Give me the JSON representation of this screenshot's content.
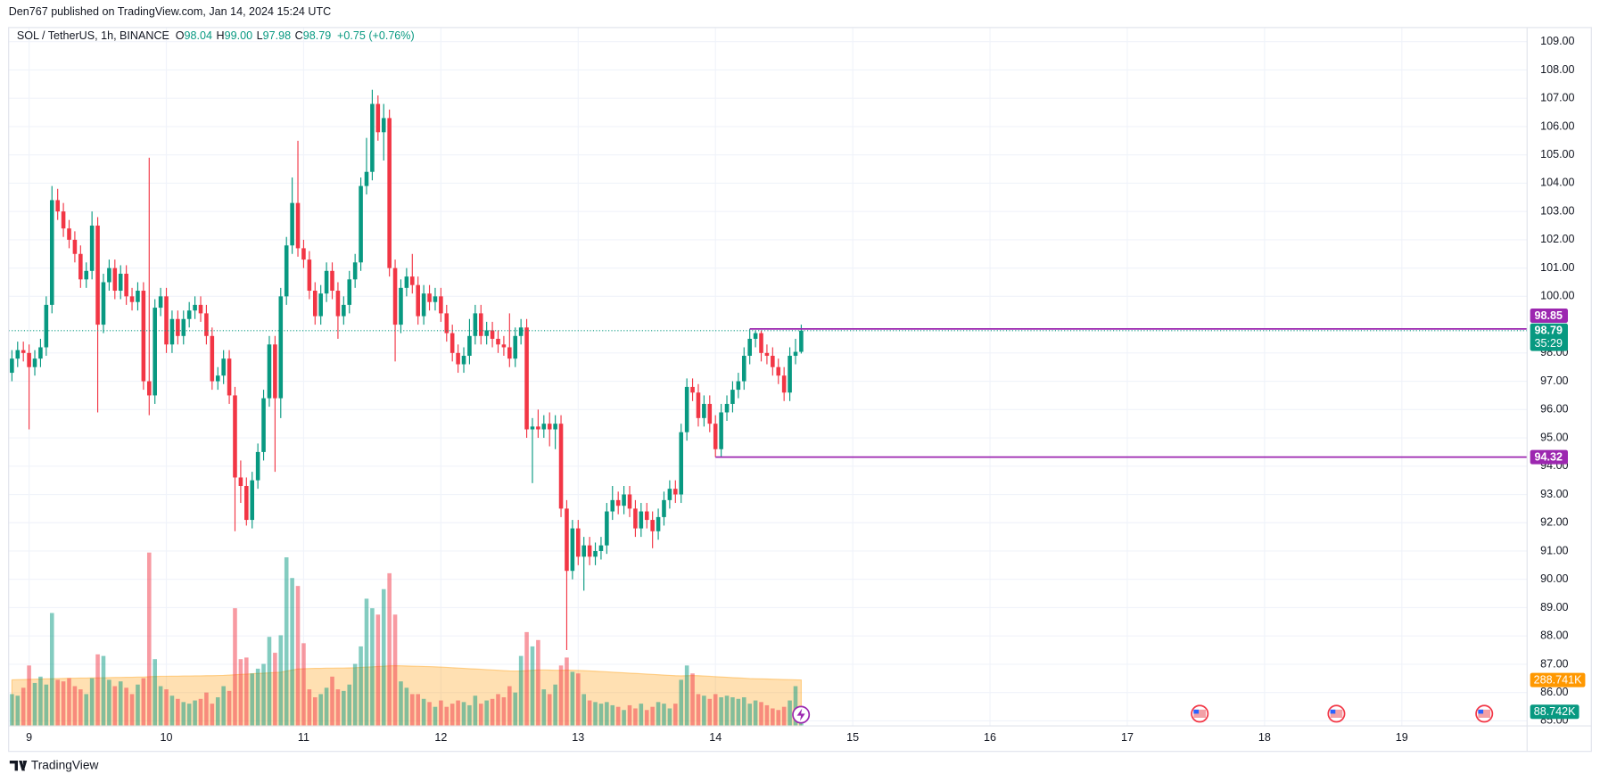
{
  "header": {
    "text": "Den767 published on TradingView.com, Jan 14, 2024 15:24 UTC"
  },
  "legend": {
    "symbol": "SOL / TetherUS, 1h, BINANCE",
    "o_label": "O",
    "open": "98.04",
    "h_label": "H",
    "high": "99.00",
    "l_label": "L",
    "low": "97.98",
    "c_label": "C",
    "close": "98.79",
    "change": "+0.75 (+0.76%)"
  },
  "footer": {
    "brand": "TradingView"
  },
  "chart_data": {
    "type": "candlestick",
    "x": [
      -3,
      -2,
      -1,
      0,
      1,
      2,
      3,
      4,
      5,
      6,
      7,
      8,
      9,
      10,
      11,
      12,
      13,
      14,
      15,
      16,
      17,
      18,
      19,
      20,
      21,
      22,
      23,
      24,
      25,
      26,
      27,
      28,
      29,
      30,
      31,
      32,
      33,
      34,
      35,
      36,
      37,
      38,
      39,
      40,
      41,
      42,
      43,
      44,
      45,
      46,
      47,
      48,
      49,
      50,
      51,
      52,
      53,
      54,
      55,
      56,
      57,
      58,
      59,
      60,
      61,
      62,
      63,
      64,
      65,
      66,
      67,
      68,
      69,
      70,
      71,
      72,
      73,
      74,
      75,
      76,
      77,
      78,
      79,
      80,
      81,
      82,
      83,
      84,
      85,
      86,
      87,
      88,
      89,
      90,
      91,
      92,
      93,
      94,
      95,
      96,
      97,
      98,
      99,
      100,
      101,
      102,
      103,
      104,
      105,
      106,
      107,
      108,
      109,
      110,
      111,
      112,
      113,
      114,
      115,
      116,
      117,
      118,
      119,
      120,
      121,
      122,
      123,
      124,
      125,
      126,
      127,
      128,
      129,
      130,
      131,
      132,
      133,
      134,
      135
    ],
    "open": [
      97.3,
      97.8,
      98.1,
      98.0,
      97.5,
      97.8,
      98.2,
      99.7,
      103.4,
      103.0,
      102.4,
      102.0,
      101.5,
      100.6,
      100.9,
      102.5,
      99.0,
      100.5,
      101.0,
      100.2,
      100.8,
      100.0,
      99.8,
      100.2,
      97.0,
      96.5,
      99.6,
      100.0,
      98.3,
      99.2,
      98.6,
      99.2,
      99.5,
      99.7,
      99.4,
      98.6,
      97.0,
      97.2,
      97.8,
      96.5,
      93.6,
      93.3,
      92.1,
      93.5,
      94.5,
      96.4,
      98.3,
      96.4,
      100.0,
      101.8,
      103.3,
      101.7,
      101.3,
      100.2,
      99.3,
      100.1,
      100.9,
      100.2,
      99.3,
      99.7,
      100.6,
      101.2,
      103.9,
      104.4,
      106.8,
      105.8,
      106.3,
      101.0,
      99.0,
      100.3,
      100.7,
      100.4,
      99.3,
      100.1,
      99.8,
      100.0,
      99.4,
      98.7,
      98.0,
      97.6,
      97.9,
      98.6,
      99.4,
      98.6,
      98.8,
      98.5,
      98.3,
      98.2,
      97.8,
      98.6,
      98.9,
      95.3,
      95.4,
      95.3,
      95.5,
      95.3,
      95.5,
      92.5,
      90.3,
      91.8,
      90.8,
      91.2,
      90.8,
      91.0,
      91.2,
      92.4,
      92.8,
      92.6,
      93.0,
      92.5,
      91.8,
      92.4,
      92.1,
      91.7,
      92.2,
      92.8,
      93.2,
      93.0,
      95.2,
      96.8,
      96.6,
      95.7,
      96.2,
      95.5,
      94.6,
      95.9,
      96.2,
      96.7,
      97.0,
      97.9,
      98.5,
      98.7,
      98.0,
      97.9,
      97.5,
      97.2,
      96.6,
      97.9,
      98.04
    ],
    "high": [
      98.1,
      98.4,
      98.4,
      98.3,
      98.1,
      98.5,
      100.0,
      103.9,
      103.8,
      103.3,
      102.7,
      102.3,
      101.8,
      101.2,
      103.0,
      102.8,
      100.8,
      101.3,
      101.3,
      101.1,
      101.1,
      100.3,
      100.5,
      100.5,
      104.9,
      99.9,
      100.3,
      100.3,
      99.5,
      99.5,
      99.5,
      99.8,
      100.0,
      100.0,
      99.7,
      98.9,
      97.5,
      98.1,
      98.1,
      96.8,
      94.2,
      93.6,
      93.8,
      94.8,
      96.7,
      98.6,
      98.6,
      100.3,
      102.1,
      104.2,
      105.5,
      102.0,
      101.6,
      100.5,
      100.4,
      101.2,
      101.2,
      100.5,
      100.0,
      100.9,
      101.5,
      104.2,
      105.6,
      107.3,
      107.1,
      106.8,
      106.6,
      101.3,
      100.6,
      101.0,
      101.5,
      100.7,
      100.4,
      100.4,
      100.3,
      100.3,
      99.7,
      99.0,
      98.3,
      98.2,
      99.2,
      99.7,
      99.7,
      99.1,
      99.1,
      98.8,
      98.6,
      99.4,
      98.9,
      99.2,
      99.2,
      95.7,
      96.0,
      95.8,
      95.9,
      95.8,
      95.8,
      92.8,
      92.1,
      92.1,
      91.5,
      91.5,
      91.3,
      91.5,
      92.7,
      93.3,
      93.1,
      93.3,
      93.3,
      92.8,
      92.7,
      92.7,
      92.4,
      92.5,
      93.1,
      93.5,
      93.5,
      95.5,
      97.1,
      97.1,
      96.9,
      96.5,
      96.5,
      95.8,
      96.2,
      96.5,
      97.0,
      97.3,
      98.2,
      98.85,
      98.8,
      98.8,
      98.3,
      98.2,
      97.8,
      97.5,
      98.2,
      98.5,
      99.0
    ],
    "low": [
      97.0,
      97.5,
      97.7,
      95.3,
      97.2,
      97.5,
      97.9,
      99.4,
      102.7,
      102.1,
      101.7,
      101.2,
      100.3,
      100.3,
      100.6,
      95.9,
      98.7,
      100.2,
      99.9,
      99.9,
      99.7,
      99.5,
      99.5,
      96.7,
      95.8,
      96.2,
      99.3,
      98.0,
      98.0,
      98.3,
      98.3,
      98.9,
      99.2,
      99.1,
      98.3,
      96.7,
      96.7,
      96.9,
      96.2,
      91.7,
      92.7,
      91.9,
      91.8,
      93.2,
      94.2,
      96.1,
      93.8,
      95.7,
      99.7,
      101.5,
      101.4,
      101.0,
      99.9,
      99.0,
      99.0,
      99.8,
      99.9,
      98.5,
      99.0,
      99.4,
      100.3,
      100.9,
      103.6,
      104.1,
      105.5,
      104.8,
      100.7,
      97.7,
      98.7,
      100.0,
      100.1,
      99.0,
      99.0,
      99.5,
      99.5,
      99.1,
      98.4,
      97.7,
      97.3,
      97.3,
      97.6,
      98.3,
      98.3,
      98.3,
      98.2,
      98.0,
      97.9,
      97.5,
      97.5,
      98.3,
      95.0,
      93.4,
      95.0,
      95.0,
      94.7,
      94.6,
      92.2,
      87.5,
      90.0,
      90.5,
      89.6,
      90.5,
      90.5,
      90.7,
      90.9,
      92.1,
      92.3,
      92.3,
      92.2,
      91.5,
      91.5,
      91.8,
      91.1,
      91.4,
      91.9,
      92.5,
      92.7,
      92.7,
      94.9,
      96.3,
      95.4,
      95.4,
      95.2,
      94.32,
      94.3,
      95.6,
      95.9,
      96.4,
      96.7,
      97.6,
      98.2,
      97.7,
      97.6,
      97.2,
      96.9,
      96.3,
      96.3,
      97.6,
      97.98
    ],
    "close": [
      97.8,
      98.1,
      98.0,
      97.5,
      97.8,
      98.2,
      99.7,
      103.4,
      103.0,
      102.4,
      102.0,
      101.5,
      100.6,
      100.9,
      102.5,
      99.0,
      100.5,
      101.0,
      100.2,
      100.8,
      100.0,
      99.8,
      100.2,
      97.0,
      96.5,
      99.6,
      100.0,
      98.3,
      99.2,
      98.6,
      99.2,
      99.5,
      99.7,
      99.4,
      98.6,
      97.0,
      97.2,
      97.8,
      96.5,
      93.6,
      93.3,
      92.1,
      93.5,
      94.5,
      96.4,
      98.3,
      96.4,
      100.0,
      101.8,
      103.3,
      101.7,
      101.3,
      100.2,
      99.3,
      100.1,
      100.9,
      100.2,
      99.3,
      99.7,
      100.6,
      101.2,
      103.9,
      104.4,
      106.8,
      105.8,
      106.3,
      101.0,
      99.0,
      100.3,
      100.7,
      100.4,
      99.3,
      100.1,
      99.8,
      100.0,
      99.4,
      98.7,
      98.0,
      97.6,
      97.9,
      98.6,
      99.4,
      98.6,
      98.8,
      98.5,
      98.3,
      98.2,
      97.8,
      98.6,
      98.9,
      95.3,
      95.4,
      95.3,
      95.5,
      95.3,
      95.5,
      92.5,
      90.3,
      91.8,
      90.8,
      91.2,
      90.8,
      91.0,
      91.2,
      92.4,
      92.8,
      92.6,
      93.0,
      92.5,
      91.8,
      92.4,
      92.1,
      91.7,
      92.2,
      92.8,
      93.2,
      93.0,
      95.2,
      96.8,
      96.6,
      95.7,
      96.2,
      95.5,
      94.6,
      95.9,
      96.2,
      96.7,
      97.0,
      97.9,
      98.5,
      98.7,
      98.0,
      97.9,
      97.5,
      97.2,
      96.6,
      97.9,
      98.04,
      98.79
    ],
    "volume": [
      200,
      190,
      240,
      380,
      270,
      310,
      260,
      710,
      290,
      280,
      300,
      250,
      230,
      200,
      300,
      450,
      440,
      290,
      250,
      280,
      240,
      200,
      260,
      300,
      1090,
      420,
      250,
      230,
      190,
      170,
      150,
      140,
      160,
      170,
      210,
      140,
      180,
      250,
      220,
      740,
      420,
      430,
      330,
      360,
      390,
      560,
      460,
      570,
      1060,
      930,
      880,
      520,
      230,
      180,
      200,
      240,
      310,
      230,
      220,
      260,
      390,
      500,
      800,
      740,
      700,
      860,
      960,
      700,
      280,
      240,
      200,
      200,
      170,
      150,
      120,
      160,
      120,
      140,
      160,
      150,
      130,
      190,
      140,
      160,
      170,
      200,
      180,
      250,
      210,
      440,
      590,
      500,
      540,
      230,
      200,
      260,
      380,
      430,
      340,
      330,
      200,
      160,
      150,
      140,
      150,
      130,
      120,
      100,
      130,
      110,
      140,
      100,
      120,
      150,
      140,
      110,
      140,
      290,
      380,
      330,
      200,
      190,
      170,
      200,
      180,
      190,
      180,
      170,
      180,
      140,
      160,
      150,
      130,
      110,
      100,
      120,
      160,
      250,
      88.742
    ],
    "volume_label": "88.742K",
    "volume_ma": [
      290,
      291,
      292,
      293,
      294,
      295,
      296,
      297,
      298,
      299,
      300,
      300,
      301,
      301,
      302,
      302,
      303,
      304,
      305,
      305,
      306,
      306,
      307,
      307,
      310,
      311,
      312,
      312,
      313,
      313,
      314,
      314,
      315,
      315,
      316,
      316,
      317,
      318,
      320,
      322,
      324,
      326,
      328,
      330,
      332,
      334,
      336,
      338,
      345,
      352,
      358,
      360,
      361,
      362,
      362,
      363,
      363,
      364,
      364,
      365,
      366,
      368,
      370,
      372,
      374,
      376,
      378,
      379,
      378,
      377,
      376,
      375,
      374,
      373,
      372,
      370,
      368,
      366,
      364,
      362,
      360,
      358,
      356,
      354,
      352,
      350,
      348,
      346,
      345,
      346,
      348,
      350,
      352,
      352,
      351,
      350,
      350,
      351,
      350,
      349,
      348,
      346,
      344,
      342,
      340,
      338,
      336,
      334,
      332,
      330,
      328,
      326,
      324,
      322,
      320,
      318,
      316,
      315,
      316,
      317,
      316,
      314,
      312,
      310,
      308,
      306,
      304,
      302,
      300,
      298,
      297,
      296,
      295,
      294,
      293,
      292,
      291,
      290,
      288.741
    ],
    "volume_ma_label": "288.741K",
    "vlim": [
      0,
      4391
    ],
    "countdown": "35:29",
    "levels": [
      {
        "value": 98.85,
        "from": 126
      },
      {
        "value": 94.32,
        "from": 120
      }
    ],
    "xlim": [
      -3.57,
      261.9
    ],
    "xticks": [
      {
        "value": 0,
        "label": "9"
      },
      {
        "value": 24,
        "label": "10"
      },
      {
        "value": 48,
        "label": "11"
      },
      {
        "value": 72,
        "label": "12"
      },
      {
        "value": 96,
        "label": "13"
      },
      {
        "value": 120,
        "label": "14"
      },
      {
        "value": 144,
        "label": "15"
      },
      {
        "value": 168,
        "label": "16"
      },
      {
        "value": 192,
        "label": "17"
      },
      {
        "value": 216,
        "label": "18"
      },
      {
        "value": 240,
        "label": "19"
      }
    ],
    "ylim": [
      84.82,
      109.5
    ],
    "yticks": [
      {
        "value": 85,
        "label": "85.00"
      },
      {
        "value": 86,
        "label": "86.00"
      },
      {
        "value": 87,
        "label": "87.00"
      },
      {
        "value": 88,
        "label": "88.00"
      },
      {
        "value": 89,
        "label": "89.00"
      },
      {
        "value": 90,
        "label": "90.00"
      },
      {
        "value": 91,
        "label": "91.00"
      },
      {
        "value": 92,
        "label": "92.00"
      },
      {
        "value": 93,
        "label": "93.00"
      },
      {
        "value": 94,
        "label": "94.00"
      },
      {
        "value": 95,
        "label": "95.00"
      },
      {
        "value": 96,
        "label": "96.00"
      },
      {
        "value": 97,
        "label": "97.00"
      },
      {
        "value": 98,
        "label": "98.00"
      },
      {
        "value": 100,
        "label": "100.00"
      },
      {
        "value": 101,
        "label": "101.00"
      },
      {
        "value": 102,
        "label": "102.00"
      },
      {
        "value": 103,
        "label": "103.00"
      },
      {
        "value": 104,
        "label": "104.00"
      },
      {
        "value": 105,
        "label": "105.00"
      },
      {
        "value": 106,
        "label": "106.00"
      },
      {
        "value": 107,
        "label": "107.00"
      },
      {
        "value": 108,
        "label": "108.00"
      },
      {
        "value": 109,
        "label": "109.00"
      }
    ],
    "grid": true,
    "up_color": "#089981",
    "down_color": "#f23645",
    "level_color": "#9c27b0",
    "volume_ma_color": "#ff9800"
  }
}
